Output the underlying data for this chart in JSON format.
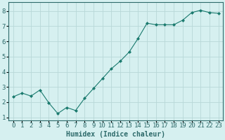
{
  "x": [
    0,
    1,
    2,
    3,
    4,
    5,
    6,
    7,
    8,
    9,
    10,
    11,
    12,
    13,
    14,
    15,
    16,
    17,
    18,
    19,
    20,
    21,
    22,
    23
  ],
  "y": [
    2.35,
    2.6,
    2.4,
    2.8,
    1.95,
    1.25,
    1.65,
    1.45,
    2.25,
    2.9,
    3.55,
    4.2,
    4.7,
    5.3,
    6.2,
    7.2,
    7.1,
    7.1,
    7.1,
    7.4,
    7.9,
    8.05,
    7.9,
    7.85
  ],
  "line_color": "#1a7a6e",
  "marker": "D",
  "marker_size": 2.0,
  "bg_color": "#d6f0f0",
  "grid_color": "#b8d8d8",
  "axis_color": "#2d6a6a",
  "xlabel": "Humidex (Indice chaleur)",
  "xlabel_fontsize": 7,
  "tick_fontsize": 6.5,
  "ylim": [
    0.8,
    8.6
  ],
  "xlim": [
    -0.5,
    23.5
  ],
  "yticks": [
    1,
    2,
    3,
    4,
    5,
    6,
    7,
    8
  ],
  "xtick_labels": [
    "0",
    "1",
    "2",
    "3",
    "4",
    "5",
    "6",
    "7",
    "8",
    "9",
    "10",
    "11",
    "12",
    "13",
    "14",
    "15",
    "16",
    "17",
    "18",
    "19",
    "20",
    "21",
    "22",
    "23"
  ]
}
